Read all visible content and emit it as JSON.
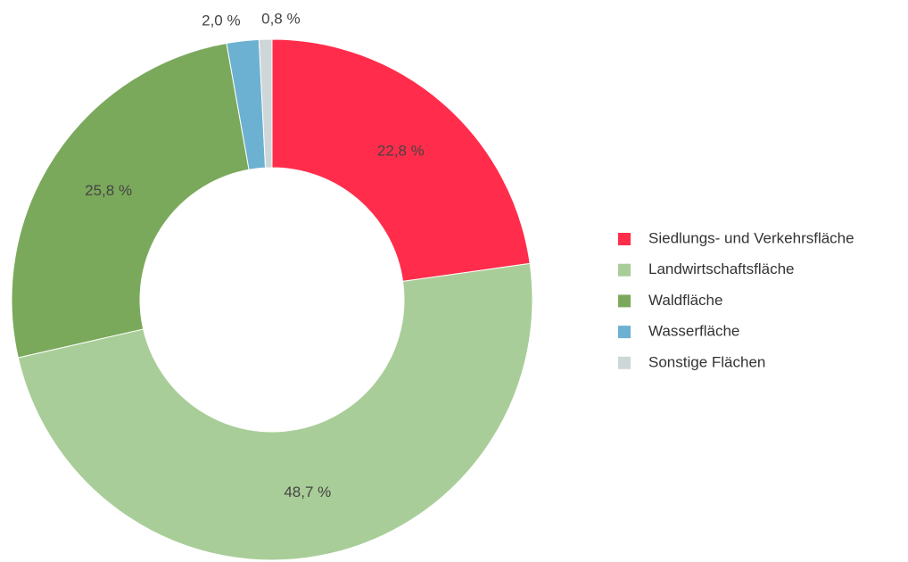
{
  "chart_data": {
    "type": "pie",
    "categories": [
      "Siedlungs- und Verkehrsfläche",
      "Landwirtschaftsfläche",
      "Waldfläche",
      "Wasserfläche",
      "Sonstige Flächen"
    ],
    "values": [
      22.8,
      48.7,
      25.8,
      2.0,
      0.8
    ],
    "value_labels": [
      "22,8 %",
      "48,7 %",
      "25,8 %",
      "2,0 %",
      "0,8 %"
    ],
    "colors": [
      "#ff2d4b",
      "#a9cd98",
      "#7ba95c",
      "#6cb1d1",
      "#cfd6d8"
    ],
    "legend": "right"
  }
}
